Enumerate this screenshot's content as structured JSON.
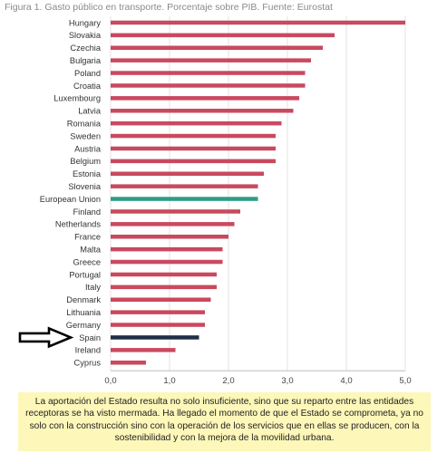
{
  "figure_caption": "Figura 1. Gasto público en transporte. Porcentaje sobre PIB. Fuente: Eurostat",
  "note_text": "La aportación del Estado resulta no solo insuficiente, sino que su reparto entre las entidades receptoras se ha visto mermada. Ha llegado el momento de que el Estado se comprometa, ya no solo con la construcción sino con la operación de los servicios que en ellas se producen, con la sostenibilidad y con la mejora de la movilidad urbana.",
  "colors": {
    "default_bar": "#c9495e",
    "eu_bar": "#2e9c86",
    "spain_bar": "#1f2f47",
    "arrow": "#000000",
    "note_background": "#fdf7b9"
  },
  "icons": {
    "pointer": "arrow-right-icon"
  },
  "chart_data": {
    "type": "bar",
    "orientation": "horizontal",
    "categories": [
      "Hungary",
      "Slovakia",
      "Czechia",
      "Bulgaria",
      "Poland",
      "Croatia",
      "Luxembourg",
      "Latvia",
      "Romania",
      "Sweden",
      "Austria",
      "Belgium",
      "Estonia",
      "Slovenia",
      "European Union",
      "Finland",
      "Netherlands",
      "France",
      "Malta",
      "Greece",
      "Portugal",
      "Italy",
      "Denmark",
      "Lithuania",
      "Germany",
      "Spain",
      "Ireland",
      "Cyprus"
    ],
    "values": [
      5.0,
      3.8,
      3.6,
      3.4,
      3.3,
      3.3,
      3.2,
      3.1,
      2.9,
      2.8,
      2.8,
      2.8,
      2.6,
      2.5,
      2.5,
      2.2,
      2.1,
      2.0,
      1.9,
      1.9,
      1.8,
      1.8,
      1.7,
      1.6,
      1.6,
      1.5,
      1.1,
      0.6
    ],
    "highlight": {
      "European Union": "eu_bar",
      "Spain": "spain_bar"
    },
    "pointer_category": "Spain",
    "xlim": [
      0,
      5
    ],
    "xticks": [
      "0,0",
      "1,0",
      "2,0",
      "3,0",
      "4,0",
      "5,0"
    ],
    "grid": true,
    "title": "",
    "xlabel": "",
    "ylabel": ""
  }
}
